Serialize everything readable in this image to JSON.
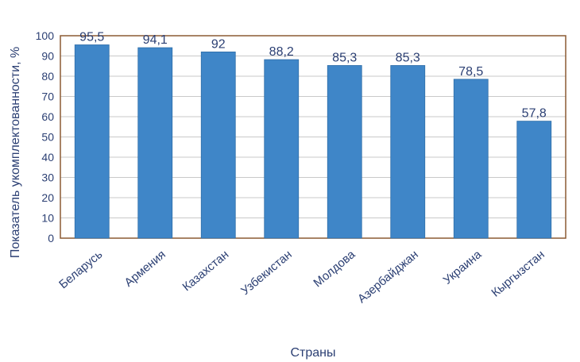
{
  "chart_data": {
    "type": "bar",
    "categories": [
      "Беларусь",
      "Армения",
      "Казахстан",
      "Узбекистан",
      "Молдова",
      "Азербайджан",
      "Украина",
      "Кыргызстан"
    ],
    "values": [
      95.5,
      94.1,
      92,
      88.2,
      85.3,
      85.3,
      78.5,
      57.8
    ],
    "value_labels": [
      "95,5",
      "94,1",
      "92",
      "88,2",
      "85,3",
      "85,3",
      "78,5",
      "57,8"
    ],
    "y_ticks": [
      0,
      10,
      20,
      30,
      40,
      50,
      60,
      70,
      80,
      90,
      100
    ],
    "xlabel": "Страны",
    "ylabel": "Показатель укомплектованности, %",
    "ylim": [
      0,
      100
    ],
    "grid": "horizontal",
    "colors": {
      "bar": "#3f86c8",
      "bar_edge": "#2f6ea8",
      "frame": "#8b5a33",
      "grid": "#c9c9c9",
      "text": "#2b3f73"
    }
  }
}
